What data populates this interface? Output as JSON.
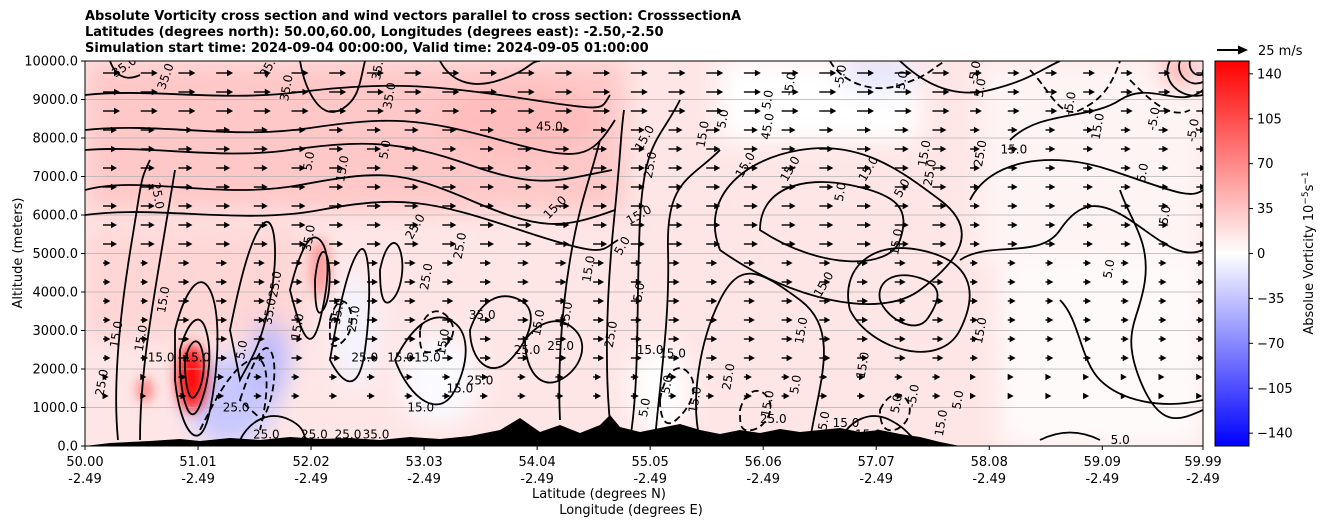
{
  "title_lines": [
    "Absolute Vorticity cross section and wind vectors parallel to cross section: CrosssectionA",
    "Latitudes (degrees north): 50.00,60.00, Longitudes (degrees east): -2.50,-2.50",
    "Simulation start time: 2024-09-04 00:00:00, Valid time: 2024-09-05 01:00:00"
  ],
  "colors": {
    "positive": "#ff0000",
    "negative": "#0000ff",
    "neutral": "#ffffff",
    "contour": "#000000",
    "terrain": "#000000",
    "grid": "#b0b0b0"
  },
  "chart_data": {
    "type": "heatmap",
    "colormap": "bwr",
    "ylabel": "Altitude (meters)",
    "xlabel_lines": [
      "Latitude (degrees N)",
      "Longitude (degrees E)"
    ],
    "x_ticks": [
      {
        "lat": "50.00",
        "lon": "-2.49"
      },
      {
        "lat": "51.01",
        "lon": "-2.49"
      },
      {
        "lat": "52.02",
        "lon": "-2.49"
      },
      {
        "lat": "53.03",
        "lon": "-2.49"
      },
      {
        "lat": "54.04",
        "lon": "-2.49"
      },
      {
        "lat": "55.05",
        "lon": "-2.49"
      },
      {
        "lat": "56.06",
        "lon": "-2.49"
      },
      {
        "lat": "57.07",
        "lon": "-2.49"
      },
      {
        "lat": "58.08",
        "lon": "-2.49"
      },
      {
        "lat": "59.09",
        "lon": "-2.49"
      },
      {
        "lat": "59.99",
        "lon": "-2.49"
      }
    ],
    "xlim": [
      50.0,
      59.99
    ],
    "y_ticks": [
      "0.0",
      "1000.0",
      "2000.0",
      "3000.0",
      "4000.0",
      "5000.0",
      "6000.0",
      "7000.0",
      "8000.0",
      "9000.0",
      "10000.0"
    ],
    "ylim": [
      0,
      10000
    ],
    "grid": "horizontal",
    "colorbar": {
      "label": "Absolue Vorticity 10$^{-5}$s$^{-1}$",
      "label_main": "Absolue Vorticity 10",
      "label_sup": "−5",
      "label_unit": "s",
      "label_unit_sup": "−1",
      "range": [
        -150,
        150
      ],
      "ticks": [
        "140",
        "105",
        "70",
        "35",
        "0",
        "−35",
        "−70",
        "−105",
        "−140"
      ],
      "tick_values": [
        140,
        105,
        70,
        35,
        0,
        -35,
        -70,
        -105,
        -140
      ]
    },
    "wind_key": "25 m/s",
    "contour_labels": [
      {
        "t": "35.0",
        "lat": 50.35,
        "z": 9850,
        "r": -35
      },
      {
        "t": "35.0",
        "lat": 50.72,
        "z": 9600,
        "r": -70
      },
      {
        "t": "25.0",
        "lat": 50.65,
        "z": 6500,
        "r": 80
      },
      {
        "t": "15.0",
        "lat": 50.7,
        "z": 3800,
        "r": -80
      },
      {
        "t": "15.0",
        "lat": 50.28,
        "z": 2900,
        "r": -80
      },
      {
        "t": "15.0",
        "lat": 50.5,
        "z": 2800,
        "r": -80
      },
      {
        "t": "15.0",
        "lat": 50.68,
        "z": 2300,
        "r": 0
      },
      {
        "t": "15.0",
        "lat": 51.0,
        "z": 2300,
        "r": 0
      },
      {
        "t": "25.0",
        "lat": 50.15,
        "z": 1650,
        "r": -80
      },
      {
        "t": "35.0",
        "lat": 51.8,
        "z": 9300,
        "r": -80
      },
      {
        "t": "25.0",
        "lat": 51.65,
        "z": 9900,
        "r": -60
      },
      {
        "t": "5.0",
        "lat": 52.0,
        "z": 7400,
        "r": -80
      },
      {
        "t": "15.0",
        "lat": 52.3,
        "z": 7200,
        "r": -80
      },
      {
        "t": "5.0",
        "lat": 52.68,
        "z": 7700,
        "r": -80
      },
      {
        "t": "35.0",
        "lat": 52.72,
        "z": 9100,
        "r": -80
      },
      {
        "t": "35.0",
        "lat": 52.62,
        "z": 9850,
        "r": -80
      },
      {
        "t": "25.0",
        "lat": 52.95,
        "z": 5700,
        "r": -60
      },
      {
        "t": "25.0",
        "lat": 53.35,
        "z": 5200,
        "r": -80
      },
      {
        "t": "25.0",
        "lat": 53.05,
        "z": 4400,
        "r": -80
      },
      {
        "t": "35.0",
        "lat": 52.0,
        "z": 5400,
        "r": -80
      },
      {
        "t": "25.0",
        "lat": 52.4,
        "z": 3300,
        "r": -80
      },
      {
        "t": "35.0",
        "lat": 52.26,
        "z": 3500,
        "r": -80
      },
      {
        "t": "35.0",
        "lat": 53.55,
        "z": 3400,
        "r": 0
      },
      {
        "t": "15.0",
        "lat": 52.82,
        "z": 2300,
        "r": 0
      },
      {
        "t": "15.0",
        "lat": 53.06,
        "z": 2300,
        "r": 0
      },
      {
        "t": "15.0",
        "lat": 53.2,
        "z": 2700,
        "r": -80
      },
      {
        "t": "15.0",
        "lat": 53.0,
        "z": 1000,
        "r": 0
      },
      {
        "t": "25.0",
        "lat": 53.53,
        "z": 1700,
        "r": 0
      },
      {
        "t": "15.0",
        "lat": 53.35,
        "z": 1500,
        "r": 0
      },
      {
        "t": "25.0",
        "lat": 53.95,
        "z": 2500,
        "r": 0
      },
      {
        "t": "25.0",
        "lat": 54.25,
        "z": 2600,
        "r": 0
      },
      {
        "t": "15.0",
        "lat": 54.05,
        "z": 3200,
        "r": -80
      },
      {
        "t": "15.0",
        "lat": 54.3,
        "z": 3400,
        "r": -80
      },
      {
        "t": "45.0",
        "lat": 54.15,
        "z": 8300,
        "r": 0
      },
      {
        "t": "15.0",
        "lat": 54.2,
        "z": 6200,
        "r": -45
      },
      {
        "t": "15.0",
        "lat": 55.0,
        "z": 8000,
        "r": -60
      },
      {
        "t": "15.0",
        "lat": 54.95,
        "z": 6000,
        "r": -30
      },
      {
        "t": "5.0",
        "lat": 54.8,
        "z": 5200,
        "r": -60
      },
      {
        "t": "5.0",
        "lat": 54.95,
        "z": 4000,
        "r": -80
      },
      {
        "t": "25.0",
        "lat": 55.05,
        "z": 7300,
        "r": -80
      },
      {
        "t": "15.0",
        "lat": 54.5,
        "z": 4600,
        "r": -80
      },
      {
        "t": "15.0",
        "lat": 55.05,
        "z": 2500,
        "r": 0
      },
      {
        "t": "25.0",
        "lat": 54.7,
        "z": 2900,
        "r": -80
      },
      {
        "t": "15.0",
        "lat": 55.52,
        "z": 8100,
        "r": -80
      },
      {
        "t": "5.0",
        "lat": 55.7,
        "z": 8500,
        "r": -80
      },
      {
        "t": "45.0",
        "lat": 56.1,
        "z": 8300,
        "r": -80
      },
      {
        "t": "15.0",
        "lat": 55.9,
        "z": 7300,
        "r": -60
      },
      {
        "t": "5.0",
        "lat": 56.1,
        "z": 9000,
        "r": -80
      },
      {
        "t": "15.0",
        "lat": 56.3,
        "z": 7200,
        "r": -60
      },
      {
        "t": "15.0",
        "lat": 56.6,
        "z": 4200,
        "r": -60
      },
      {
        "t": "15.0",
        "lat": 56.4,
        "z": 3000,
        "r": -80
      },
      {
        "t": "15.0",
        "lat": 56.95,
        "z": 2100,
        "r": -80
      },
      {
        "t": "5.0",
        "lat": 56.75,
        "z": 6600,
        "r": -80
      },
      {
        "t": "15.0",
        "lat": 57.0,
        "z": 7200,
        "r": -60
      },
      {
        "t": "15.0",
        "lat": 57.25,
        "z": 5300,
        "r": -80
      },
      {
        "t": "15.0",
        "lat": 57.5,
        "z": 7600,
        "r": -80
      },
      {
        "t": "5.0",
        "lat": 57.3,
        "z": 6700,
        "r": -60
      },
      {
        "t": "25.0",
        "lat": 57.55,
        "z": 7100,
        "r": -80
      },
      {
        "t": "5.0",
        "lat": 57.3,
        "z": 9500,
        "r": -80
      },
      {
        "t": "25.0",
        "lat": 58.0,
        "z": 7600,
        "r": -80
      },
      {
        "t": "15.0",
        "lat": 58.3,
        "z": 7700,
        "r": 0
      },
      {
        "t": "15.0",
        "lat": 58.0,
        "z": 3000,
        "r": -80
      },
      {
        "t": "5.0",
        "lat": 59.15,
        "z": 4600,
        "r": -80
      },
      {
        "t": "5.0",
        "lat": 59.65,
        "z": 6000,
        "r": -80
      },
      {
        "t": "5.0",
        "lat": 59.45,
        "z": 7100,
        "r": -80
      },
      {
        "t": "15.0",
        "lat": 59.05,
        "z": 8300,
        "r": -80
      },
      {
        "t": "5.0",
        "lat": 58.0,
        "z": 9300,
        "r": -80
      },
      {
        "t": "-5.0",
        "lat": 56.3,
        "z": 9400,
        "r": -80
      },
      {
        "t": "-5.0",
        "lat": 56.75,
        "z": 9600,
        "r": -80
      },
      {
        "t": "-5.0",
        "lat": 57.95,
        "z": 9700,
        "r": -80
      },
      {
        "t": "-5.0",
        "lat": 58.8,
        "z": 8900,
        "r": -80
      },
      {
        "t": "-5.0",
        "lat": 59.55,
        "z": 8500,
        "r": -80
      },
      {
        "t": "-5.0",
        "lat": 59.9,
        "z": 8200,
        "r": -80
      },
      {
        "t": "-5.0",
        "lat": 56.6,
        "z": 600,
        "r": -80
      },
      {
        "t": "-5.0",
        "lat": 57.4,
        "z": 1300,
        "r": -80
      },
      {
        "t": "5.0",
        "lat": 59.25,
        "z": 150,
        "r": 0
      },
      {
        "t": "15.0",
        "lat": 56.8,
        "z": 600,
        "r": 0
      },
      {
        "t": "25.0",
        "lat": 56.15,
        "z": 700,
        "r": 0
      },
      {
        "t": "15.0",
        "lat": 57.0,
        "z": 300,
        "r": 0
      },
      {
        "t": "25.0",
        "lat": 52.05,
        "z": 300,
        "r": 0
      },
      {
        "t": "25.0",
        "lat": 52.35,
        "z": 300,
        "r": 0
      },
      {
        "t": "35.0",
        "lat": 52.6,
        "z": 300,
        "r": 0
      },
      {
        "t": "25.0",
        "lat": 51.62,
        "z": 300,
        "r": 0
      },
      {
        "t": "25.0",
        "lat": 51.35,
        "z": 1000,
        "r": 0
      },
      {
        "t": "5.0",
        "lat": 51.4,
        "z": 2500,
        "r": -80
      },
      {
        "t": "25.0",
        "lat": 51.7,
        "z": 4200,
        "r": -80
      },
      {
        "t": "35.0",
        "lat": 51.65,
        "z": 3500,
        "r": -80
      },
      {
        "t": "15.0",
        "lat": 51.9,
        "z": 3100,
        "r": -80
      },
      {
        "t": "25.0",
        "lat": 52.5,
        "z": 2300,
        "r": 0
      },
      {
        "t": "15.0",
        "lat": 55.45,
        "z": 1200,
        "r": -80
      },
      {
        "t": "25.0",
        "lat": 55.75,
        "z": 1800,
        "r": -80
      },
      {
        "t": "5.0",
        "lat": 55.2,
        "z": 1600,
        "r": -80
      },
      {
        "t": "5.0",
        "lat": 55.0,
        "z": 1000,
        "r": -80
      },
      {
        "t": "15.0",
        "lat": 55.25,
        "z": 2400,
        "r": 0
      },
      {
        "t": "5.0",
        "lat": 56.35,
        "z": 1600,
        "r": -80
      },
      {
        "t": "15.0",
        "lat": 56.1,
        "z": 1100,
        "r": -80
      },
      {
        "t": "5.0",
        "lat": 57.25,
        "z": 1100,
        "r": -80
      },
      {
        "t": "15.0",
        "lat": 57.65,
        "z": 600,
        "r": -80
      },
      {
        "t": "5.0",
        "lat": 57.8,
        "z": 1200,
        "r": -80
      }
    ]
  }
}
